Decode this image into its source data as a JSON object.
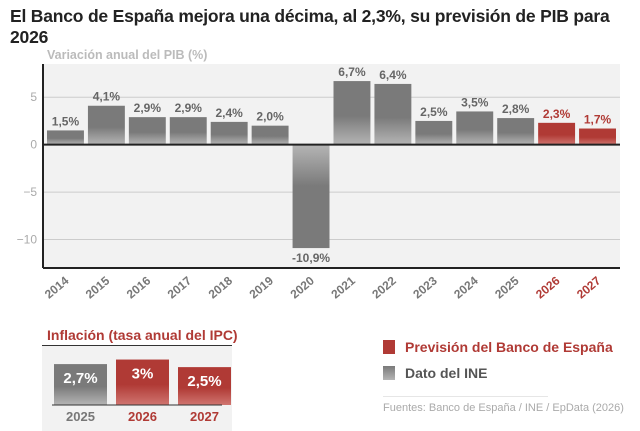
{
  "title": "El Banco de España mejora una décima, al 2,3%, su previsión de PIB para 2026",
  "colors": {
    "ine": "#7a7a7a",
    "forecast": "#b03a35",
    "plot_bg": "#f2f2f2"
  },
  "chart_data": [
    {
      "type": "bar",
      "title": "Variación anual del PIB (%)",
      "categories": [
        "2014",
        "2015",
        "2016",
        "2017",
        "2018",
        "2019",
        "2020",
        "2021",
        "2022",
        "2023",
        "2024",
        "2025",
        "2026",
        "2027"
      ],
      "values": [
        1.5,
        4.1,
        2.9,
        2.9,
        2.4,
        2.0,
        -10.9,
        6.7,
        6.4,
        2.5,
        3.5,
        2.8,
        2.3,
        1.7
      ],
      "labels": [
        "1,5%",
        "4,1%",
        "2,9%",
        "2,9%",
        "2,4%",
        "2,0%",
        "-10,9%",
        "6,7%",
        "6,4%",
        "2,5%",
        "3,5%",
        "2,8%",
        "2,3%",
        "1,7%"
      ],
      "series_type": [
        "ine",
        "ine",
        "ine",
        "ine",
        "ine",
        "ine",
        "ine",
        "ine",
        "ine",
        "ine",
        "ine",
        "ine",
        "forecast",
        "forecast"
      ],
      "yticks": [
        5,
        0,
        -5,
        -10
      ],
      "ytick_labels": [
        "5",
        "0",
        "−5",
        "−10"
      ],
      "ylim": [
        -13,
        8.5
      ],
      "grid": true
    },
    {
      "type": "bar",
      "title": "Inflación (tasa anual del IPC)",
      "categories": [
        "2025",
        "2026",
        "2027"
      ],
      "values": [
        2.7,
        3.0,
        2.5
      ],
      "labels": [
        "2,7%",
        "3%",
        "2,5%"
      ],
      "series_type": [
        "ine",
        "forecast",
        "forecast"
      ],
      "ylim": [
        0,
        3.3
      ]
    }
  ],
  "legend": [
    {
      "label": "Previsión del Banco de España",
      "type": "forecast"
    },
    {
      "label": "Dato del INE",
      "type": "ine"
    }
  ],
  "source": "Fuentes: Banco de España / INE / EpData (2026)"
}
